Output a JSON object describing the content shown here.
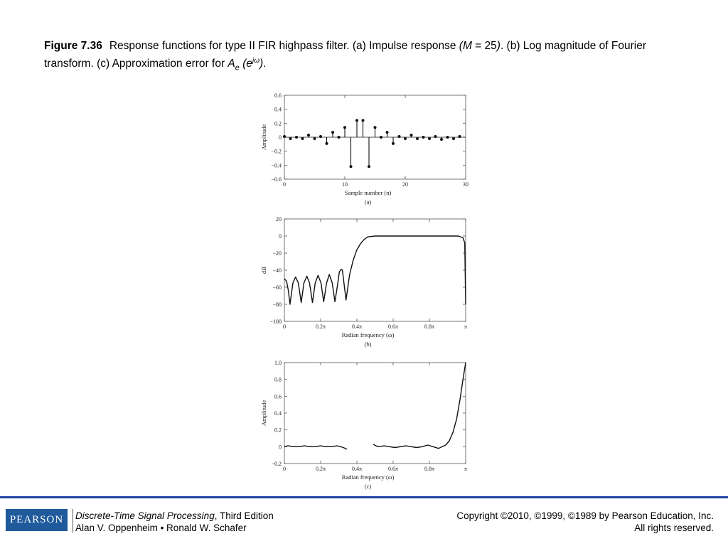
{
  "caption": {
    "figure_label": "Figure 7.36",
    "text_before": "Response functions for type II FIR highpass filter. (a) Impulse response ",
    "paren_M": "(M",
    "eq_25": " = 25",
    "close_paren": ")",
    "text_mid": ". (b) Log magnitude of Fourier transform. (c) Approximation error for ",
    "A": "A",
    "sub_e": "e",
    "paren_e": " (e",
    "sup_jw": "jω",
    "close": ")",
    "end": "."
  },
  "footer": {
    "logo": "PEARSON",
    "book_title": "Discrete-Time Signal Processing",
    "edition": ", Third Edition",
    "authors": "Alan V. Oppenheim • Ronald W. Schafer",
    "copyright": "Copyright ©2010, ©1999, ©1989 by Pearson Education, Inc.",
    "rights": "All rights reserved."
  },
  "colors": {
    "rule": "#1f3fa0",
    "logo_bg": "#1f5a9c",
    "plot_line": "#111111"
  },
  "chart_data": [
    {
      "type": "stem",
      "panel_label": "(a)",
      "xlabel": "Sample number (n)",
      "ylabel": "Amplitude",
      "xlim": [
        0,
        30
      ],
      "ylim": [
        -0.6,
        0.6
      ],
      "xticks": [
        0,
        10,
        20,
        30
      ],
      "xtick_labels": [
        "0",
        "10",
        "20",
        "30"
      ],
      "yticks": [
        -0.6,
        -0.4,
        -0.2,
        0,
        0.2,
        0.4,
        0.6
      ],
      "ytick_labels": [
        "−0.6",
        "−0.4",
        "−0.2",
        "0",
        "0.2",
        "0.4",
        "0.6"
      ],
      "x": [
        0,
        1,
        2,
        3,
        4,
        5,
        6,
        7,
        8,
        9,
        10,
        11,
        12,
        13,
        14,
        15,
        16,
        17,
        18,
        19,
        20,
        21,
        22,
        23,
        24,
        25,
        26,
        27,
        28,
        29
      ],
      "values": [
        0.01,
        -0.02,
        0.0,
        -0.02,
        0.03,
        -0.02,
        0.01,
        -0.09,
        0.07,
        0.0,
        0.14,
        -0.42,
        0.24,
        0.24,
        -0.42,
        0.14,
        0.0,
        0.07,
        -0.09,
        0.01,
        -0.02,
        0.03,
        -0.02,
        0.0,
        -0.02,
        0.01,
        -0.03,
        0.0,
        -0.02,
        0.01
      ]
    },
    {
      "type": "line",
      "panel_label": "(b)",
      "xlabel": "Radian frequency (ω)",
      "ylabel": "dB",
      "xlim": [
        0,
        1
      ],
      "ylim": [
        -100,
        20
      ],
      "xticks": [
        0,
        0.2,
        0.4,
        0.6,
        0.8,
        1
      ],
      "xtick_labels": [
        "0",
        "0.2π",
        "0.4π",
        "0.6π",
        "0.8π",
        "π"
      ],
      "yticks": [
        -100,
        -80,
        -60,
        -40,
        -20,
        0,
        20
      ],
      "ytick_labels": [
        "−100",
        "−80",
        "−60",
        "−40",
        "−20",
        "0",
        "20"
      ],
      "x": [
        0,
        0.012,
        0.022,
        0.031,
        0.047,
        0.062,
        0.077,
        0.093,
        0.108,
        0.124,
        0.139,
        0.155,
        0.17,
        0.186,
        0.202,
        0.217,
        0.233,
        0.248,
        0.264,
        0.279,
        0.295,
        0.303,
        0.313,
        0.32,
        0.34,
        0.36,
        0.38,
        0.4,
        0.42,
        0.44,
        0.46,
        0.5,
        0.55,
        0.6,
        0.7,
        0.8,
        0.9,
        0.96,
        0.985,
        0.995,
        1.0
      ],
      "values": [
        -50,
        -53,
        -64,
        -80,
        -55,
        -48,
        -55,
        -78,
        -55,
        -47,
        -55,
        -78,
        -55,
        -46,
        -55,
        -77,
        -55,
        -45,
        -55,
        -77,
        -55,
        -42,
        -39,
        -40,
        -75,
        -45,
        -28,
        -16,
        -9,
        -4,
        -1,
        0,
        0,
        0,
        0,
        0,
        0,
        0,
        -2,
        -8,
        -80
      ]
    },
    {
      "type": "line",
      "panel_label": "(c)",
      "xlabel": "Radian frequency (ω)",
      "ylabel": "Amplitude",
      "xlim": [
        0,
        1
      ],
      "ylim": [
        -0.2,
        1.0
      ],
      "xticks": [
        0,
        0.2,
        0.4,
        0.6,
        0.8,
        1
      ],
      "xtick_labels": [
        "0",
        "0.2π",
        "0.4π",
        "0.6π",
        "0.8π",
        "π"
      ],
      "yticks": [
        -0.2,
        0,
        0.2,
        0.4,
        0.6,
        0.8,
        1.0
      ],
      "ytick_labels": [
        "−0.2",
        "0",
        "0.2",
        "0.4",
        "0.6",
        "0.8",
        "1.0"
      ],
      "segments": [
        {
          "x": [
            0,
            0.02,
            0.05,
            0.08,
            0.11,
            0.14,
            0.17,
            0.2,
            0.23,
            0.26,
            0.29,
            0.31,
            0.325,
            0.345
          ],
          "values": [
            0.0,
            0.01,
            0.0,
            0.0,
            0.01,
            0.0,
            0.0,
            0.01,
            0.0,
            0.0,
            0.01,
            0.0,
            -0.01,
            -0.03
          ]
        },
        {
          "x": [
            0.49,
            0.505,
            0.52,
            0.55,
            0.58,
            0.61,
            0.64,
            0.67,
            0.7,
            0.73,
            0.76,
            0.79,
            0.82,
            0.85,
            0.87,
            0.89,
            0.91,
            0.93,
            0.95,
            0.97,
            0.985,
            1.0
          ],
          "values": [
            0.03,
            0.01,
            0.0,
            0.01,
            0.0,
            -0.01,
            0.0,
            0.01,
            0.0,
            -0.01,
            0.0,
            0.02,
            0.0,
            -0.02,
            0.0,
            0.02,
            0.07,
            0.17,
            0.33,
            0.58,
            0.8,
            1.0
          ]
        }
      ]
    }
  ]
}
